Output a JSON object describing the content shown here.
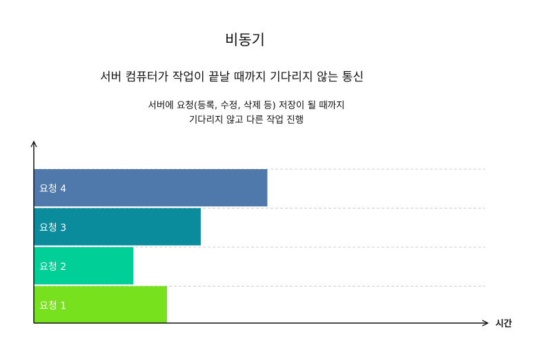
{
  "title": "비동기",
  "subtitle": "서버 컴퓨터가 작업이 끝날 때까지 기다리지 않는 통신",
  "description": {
    "line1": "서버에 요청(등록, 수정, 삭제 등) 저장이 될 때까지",
    "line2": "기다리지 않고 다른 작업 진행"
  },
  "chart_data": {
    "type": "bar",
    "orientation": "horizontal",
    "xlabel": "시간",
    "ylabel": "",
    "categories": [
      "요청 4",
      "요청 3",
      "요청 2",
      "요청 1"
    ],
    "values": [
      340,
      243,
      145,
      194
    ],
    "xlim": [
      0,
      660
    ],
    "colors": [
      "#4e79aa",
      "#0a8c9c",
      "#00cf98",
      "#78e11d"
    ],
    "grid": true
  }
}
